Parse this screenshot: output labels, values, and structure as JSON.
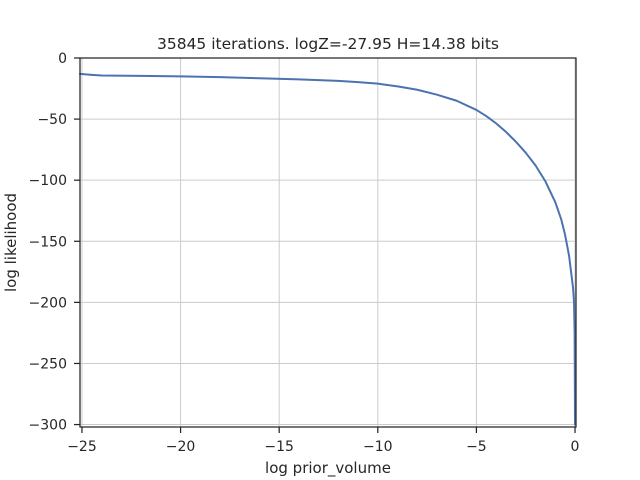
{
  "chart_data": {
    "type": "line",
    "title": "35845 iterations. logZ=-27.95 H=14.38 bits",
    "xlabel": "log prior_volume",
    "ylabel": "log likelihood",
    "xlim": [
      -25.1,
      0.05
    ],
    "ylim": [
      -302,
      0
    ],
    "xticks": [
      -25,
      -20,
      -15,
      -10,
      -5,
      0
    ],
    "xtick_labels": [
      "−25",
      "−20",
      "−15",
      "−10",
      "−5",
      "0"
    ],
    "yticks": [
      0,
      -50,
      -100,
      -150,
      -200,
      -250,
      -300
    ],
    "ytick_labels": [
      "0",
      "−50",
      "−100",
      "−150",
      "−200",
      "−250",
      "−300"
    ],
    "grid": true,
    "colors": {
      "line": "#4c72b0",
      "grid": "#cccccc",
      "axes": "#262626"
    },
    "series": [
      {
        "x": [
          -25.1,
          -24.5,
          -24.0,
          -22.0,
          -20.0,
          -18.0,
          -16.0,
          -14.0,
          -12.0,
          -11.0,
          -10.0,
          -9.0,
          -8.0,
          -7.0,
          -6.0,
          -5.0,
          -4.5,
          -4.0,
          -3.5,
          -3.0,
          -2.5,
          -2.0,
          -1.5,
          -1.0,
          -0.7,
          -0.5,
          -0.3,
          -0.2,
          -0.1,
          -0.05,
          -0.02,
          0.0
        ],
        "y": [
          -13.0,
          -13.8,
          -14.3,
          -14.6,
          -15.0,
          -15.7,
          -16.6,
          -17.5,
          -18.7,
          -19.7,
          -21.0,
          -23.2,
          -26.0,
          -30.0,
          -35.0,
          -42.5,
          -47.5,
          -53.5,
          -60.5,
          -68.5,
          -77.5,
          -88.0,
          -101.0,
          -118.0,
          -132.0,
          -145.0,
          -162.0,
          -175.0,
          -188.0,
          -200.0,
          -225.0,
          -300.0
        ]
      }
    ]
  }
}
